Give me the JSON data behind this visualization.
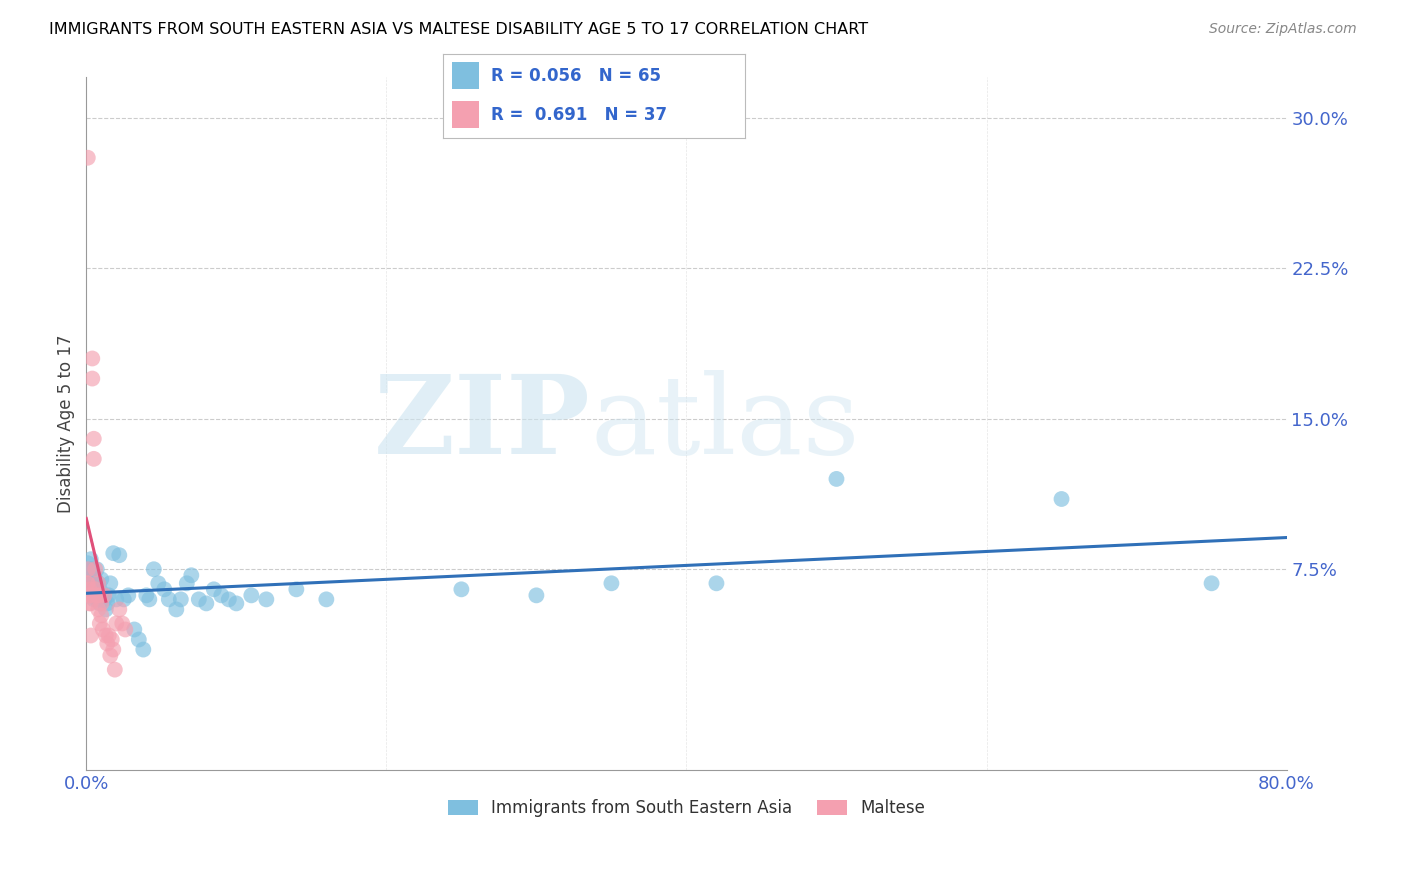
{
  "title": "IMMIGRANTS FROM SOUTH EASTERN ASIA VS MALTESE DISABILITY AGE 5 TO 17 CORRELATION CHART",
  "source": "Source: ZipAtlas.com",
  "ylabel": "Disability Age 5 to 17",
  "xlim": [
    0.0,
    0.8
  ],
  "ylim": [
    -0.025,
    0.32
  ],
  "yticks": [
    0.075,
    0.15,
    0.225,
    0.3
  ],
  "ytick_labels": [
    "7.5%",
    "15.0%",
    "22.5%",
    "30.0%"
  ],
  "xticks": [
    0.0,
    0.2,
    0.4,
    0.6,
    0.8
  ],
  "xtick_labels": [
    "0.0%",
    "",
    "",
    "",
    "80.0%"
  ],
  "blue_R": "0.056",
  "blue_N": "65",
  "pink_R": "0.691",
  "pink_N": "37",
  "blue_color": "#7fbfdf",
  "pink_color": "#f4a0b0",
  "blue_line_color": "#3070b8",
  "pink_line_color": "#e0507a",
  "watermark_zip": "ZIP",
  "watermark_atlas": "atlas",
  "legend_label_blue": "Immigrants from South Eastern Asia",
  "legend_label_pink": "Maltese",
  "blue_scatter_x": [
    0.001,
    0.001,
    0.002,
    0.002,
    0.003,
    0.003,
    0.003,
    0.004,
    0.004,
    0.004,
    0.005,
    0.005,
    0.005,
    0.006,
    0.006,
    0.006,
    0.007,
    0.007,
    0.008,
    0.008,
    0.009,
    0.009,
    0.01,
    0.01,
    0.011,
    0.012,
    0.013,
    0.014,
    0.015,
    0.016,
    0.018,
    0.02,
    0.022,
    0.025,
    0.028,
    0.032,
    0.035,
    0.038,
    0.04,
    0.042,
    0.045,
    0.048,
    0.052,
    0.055,
    0.06,
    0.063,
    0.067,
    0.07,
    0.075,
    0.08,
    0.085,
    0.09,
    0.095,
    0.1,
    0.11,
    0.12,
    0.14,
    0.16,
    0.25,
    0.3,
    0.35,
    0.42,
    0.5,
    0.65,
    0.75
  ],
  "blue_scatter_y": [
    0.078,
    0.07,
    0.075,
    0.068,
    0.072,
    0.065,
    0.08,
    0.07,
    0.063,
    0.075,
    0.068,
    0.072,
    0.06,
    0.065,
    0.07,
    0.062,
    0.06,
    0.075,
    0.062,
    0.068,
    0.058,
    0.065,
    0.06,
    0.07,
    0.062,
    0.06,
    0.055,
    0.058,
    0.062,
    0.068,
    0.083,
    0.06,
    0.082,
    0.06,
    0.062,
    0.045,
    0.04,
    0.035,
    0.062,
    0.06,
    0.075,
    0.068,
    0.065,
    0.06,
    0.055,
    0.06,
    0.068,
    0.072,
    0.06,
    0.058,
    0.065,
    0.062,
    0.06,
    0.058,
    0.062,
    0.06,
    0.065,
    0.06,
    0.065,
    0.062,
    0.068,
    0.068,
    0.12,
    0.11,
    0.068
  ],
  "pink_scatter_x": [
    0.0005,
    0.001,
    0.001,
    0.001,
    0.002,
    0.002,
    0.002,
    0.003,
    0.003,
    0.003,
    0.004,
    0.004,
    0.005,
    0.005,
    0.006,
    0.006,
    0.007,
    0.007,
    0.008,
    0.008,
    0.009,
    0.009,
    0.01,
    0.01,
    0.011,
    0.012,
    0.013,
    0.014,
    0.015,
    0.016,
    0.017,
    0.018,
    0.019,
    0.02,
    0.022,
    0.024,
    0.026
  ],
  "pink_scatter_y": [
    0.068,
    0.28,
    0.068,
    0.075,
    0.065,
    0.062,
    0.058,
    0.062,
    0.058,
    0.042,
    0.18,
    0.17,
    0.14,
    0.13,
    0.075,
    0.065,
    0.062,
    0.062,
    0.068,
    0.055,
    0.062,
    0.048,
    0.058,
    0.052,
    0.045,
    0.062,
    0.042,
    0.038,
    0.042,
    0.032,
    0.04,
    0.035,
    0.025,
    0.048,
    0.055,
    0.048,
    0.045
  ],
  "background_color": "#ffffff",
  "grid_color": "#cccccc",
  "title_color": "#000000",
  "tick_color": "#4466cc"
}
